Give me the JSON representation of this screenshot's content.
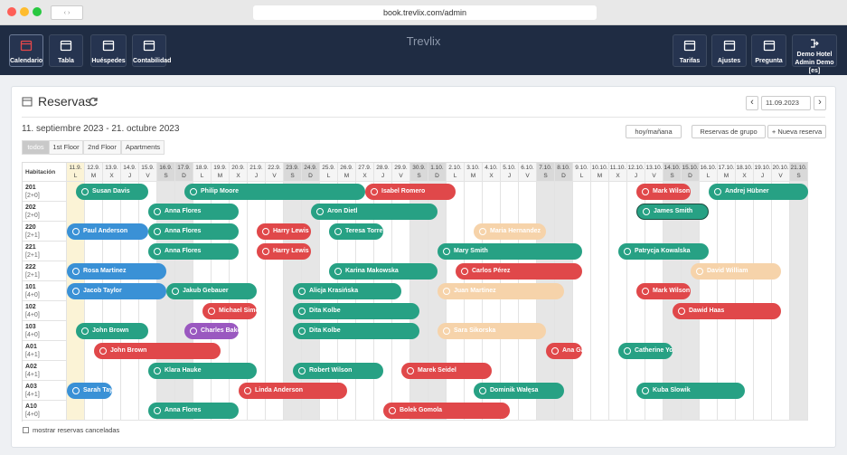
{
  "browser": {
    "url": "book.trevlix.com/admin"
  },
  "header": {
    "brand": "Trevlix",
    "nav_left": [
      "Calendario",
      "Tabla",
      "Huéspedes",
      "Contabilidad"
    ],
    "nav_right": [
      "Tarifas",
      "Ajustes",
      "Pregunta"
    ],
    "hotel": "Demo Hotel",
    "user": "Admin Demo [es]"
  },
  "page": {
    "title": "Reservas",
    "range": "11. septiembre 2023 - 21. octubre 2023",
    "date": "11.09.2023",
    "buttons": [
      "hoy/mañana",
      "Reservas de grupo",
      "+ Nueva reserva"
    ],
    "tabs": [
      "todos",
      "1st Floor",
      "2nd Floor",
      "Apartments"
    ],
    "room_header": "Habitación",
    "days": [
      "11.9.",
      "12.9.",
      "13.9.",
      "14.9.",
      "15.9.",
      "16.9.",
      "17.9.",
      "18.9.",
      "19.9.",
      "20.9.",
      "21.9.",
      "22.9.",
      "23.9.",
      "24.9.",
      "25.9.",
      "26.9.",
      "27.9.",
      "28.9.",
      "29.9.",
      "30.9.",
      "1.10.",
      "2.10.",
      "3.10.",
      "4.10.",
      "5.10.",
      "6.10.",
      "7.10.",
      "8.10.",
      "9.10.",
      "10.10.",
      "11.10.",
      "12.10.",
      "13.10.",
      "14.10.",
      "15.10.",
      "16.10.",
      "17.10.",
      "18.10.",
      "19.10.",
      "20.10.",
      "21.10."
    ],
    "weekdays": [
      "L",
      "M",
      "X",
      "J",
      "V",
      "S",
      "D",
      "L",
      "M",
      "X",
      "J",
      "V",
      "S",
      "D",
      "L",
      "M",
      "X",
      "J",
      "V",
      "S",
      "D",
      "L",
      "M",
      "X",
      "J",
      "V",
      "S",
      "D",
      "L",
      "M",
      "X",
      "J",
      "V",
      "S",
      "D",
      "L",
      "M",
      "X",
      "J",
      "V",
      "S"
    ],
    "rooms": [
      {
        "name": "201",
        "capacity": "[2+0]",
        "bookings": [
          {
            "guest": "Susan Davis",
            "color": "#27a184",
            "from": "11.9.",
            "to": "15.9."
          },
          {
            "guest": "Philip Moore",
            "color": "#27a184",
            "from": "17.9.",
            "to": "27.9."
          },
          {
            "guest": "Isabel Romero",
            "color": "#e0484a",
            "from": "27.9.",
            "to": "2.10."
          },
          {
            "guest": "Mark Wilson",
            "color": "#e0484a",
            "from": "12.10.",
            "to": "15.10."
          },
          {
            "guest": "Andrej Hübner",
            "color": "#27a184",
            "from": "16.10.",
            "to": null
          }
        ]
      },
      {
        "name": "202",
        "capacity": "[2+0]",
        "bookings": [
          {
            "guest": "Anna Flores",
            "color": "#27a184",
            "from": "15.9.",
            "to": "20.9."
          },
          {
            "guest": "Aron Dietl",
            "color": "#27a184",
            "from": "24.9.",
            "to": "1.10."
          },
          {
            "guest": "James Smith",
            "color": "#27a184",
            "from": "12.10.",
            "to": "16.10.",
            "selected": true
          }
        ]
      },
      {
        "name": "220",
        "capacity": "[2+1]",
        "bookings": [
          {
            "guest": "Paul Anderson",
            "color": "#3a91d6",
            "from": null,
            "to": "15.9."
          },
          {
            "guest": "Anna Flores",
            "color": "#27a184",
            "from": "15.9.",
            "to": "20.9."
          },
          {
            "guest": "Harry Lewis",
            "color": "#e0484a",
            "from": "21.9.",
            "to": "24.9."
          },
          {
            "guest": "Teresa Torres",
            "color": "#27a184",
            "from": "25.9.",
            "to": "28.9."
          },
          {
            "guest": "Maria Hernandez",
            "color": "#f6d3aa",
            "from": "3.10.",
            "to": "7.10."
          }
        ]
      },
      {
        "name": "221",
        "capacity": "[2+1]",
        "bookings": [
          {
            "guest": "Anna Flores",
            "color": "#27a184",
            "from": "15.9.",
            "to": "20.9."
          },
          {
            "guest": "Harry Lewis",
            "color": "#e0484a",
            "from": "21.9.",
            "to": "24.9."
          },
          {
            "guest": "Mary Smith",
            "color": "#27a184",
            "from": "1.10.",
            "to": "9.10."
          },
          {
            "guest": "Patrycja Kowalska",
            "color": "#27a184",
            "from": "11.10.",
            "to": "16.10."
          }
        ]
      },
      {
        "name": "222",
        "capacity": "[2+1]",
        "bookings": [
          {
            "guest": "Rosa Martinez",
            "color": "#3a91d6",
            "from": null,
            "to": "16.9."
          },
          {
            "guest": "Karina Makowska",
            "color": "#27a184",
            "from": "25.9.",
            "to": "1.10."
          },
          {
            "guest": "Carlos Pérez",
            "color": "#e0484a",
            "from": "2.10.",
            "to": "9.10."
          },
          {
            "guest": "David William",
            "color": "#f6d3aa",
            "from": "15.10.",
            "to": "20.10."
          }
        ]
      },
      {
        "name": "101",
        "capacity": "[4+0]",
        "bookings": [
          {
            "guest": "Jacob Taylor",
            "color": "#3a91d6",
            "from": null,
            "to": "16.9."
          },
          {
            "guest": "Jakub Gebauer",
            "color": "#27a184",
            "from": "16.9.",
            "to": "21.9."
          },
          {
            "guest": "Alicja Krasińska",
            "color": "#27a184",
            "from": "23.9.",
            "to": "29.9."
          },
          {
            "guest": "Juan Martinez",
            "color": "#f6d3aa",
            "from": "1.10.",
            "to": "8.10."
          },
          {
            "guest": "Mark Wilson",
            "color": "#e0484a",
            "from": "12.10.",
            "to": "15.10."
          }
        ]
      },
      {
        "name": "102",
        "capacity": "[4+0]",
        "bookings": [
          {
            "guest": "Michael Simons",
            "color": "#e0484a",
            "from": "18.9.",
            "to": "21.9."
          },
          {
            "guest": "Dita Kolbe",
            "color": "#27a184",
            "from": "23.9.",
            "to": "30.9."
          },
          {
            "guest": "Dawid Haas",
            "color": "#e0484a",
            "from": "14.10.",
            "to": "20.10."
          }
        ]
      },
      {
        "name": "103",
        "capacity": "[4+0]",
        "bookings": [
          {
            "guest": "John Brown",
            "color": "#27a184",
            "from": "11.9.",
            "to": "15.9."
          },
          {
            "guest": "Charles Baker",
            "color": "#9a58c0",
            "from": "17.9.",
            "to": "20.9."
          },
          {
            "guest": "Dita Kolbe",
            "color": "#27a184",
            "from": "23.9.",
            "to": "30.9."
          },
          {
            "guest": "Sara Sikorska",
            "color": "#f6d3aa",
            "from": "1.10.",
            "to": "7.10."
          }
        ]
      },
      {
        "name": "A01",
        "capacity": "[4+1]",
        "bookings": [
          {
            "guest": "John Brown",
            "color": "#e0484a",
            "from": "12.9.",
            "to": "19.9."
          },
          {
            "guest": "Ana Garci",
            "color": "#e0484a",
            "from": "7.10.",
            "to": "9.10."
          },
          {
            "guest": "Catherine Young",
            "color": "#27a184",
            "from": "11.10.",
            "to": "14.10."
          }
        ]
      },
      {
        "name": "A02",
        "capacity": "[4+1]",
        "bookings": [
          {
            "guest": "Klara Hauke",
            "color": "#27a184",
            "from": "15.9.",
            "to": "21.9."
          },
          {
            "guest": "Robert Wilson",
            "color": "#27a184",
            "from": "23.9.",
            "to": "28.9."
          },
          {
            "guest": "Marek Seidel",
            "color": "#e0484a",
            "from": "29.9.",
            "to": "4.10."
          }
        ]
      },
      {
        "name": "A03",
        "capacity": "[4+1]",
        "bookings": [
          {
            "guest": "Sarah Taylor",
            "color": "#3a91d6",
            "from": null,
            "to": "13.9."
          },
          {
            "guest": "Linda Anderson",
            "color": "#e0484a",
            "from": "20.9.",
            "to": "26.9."
          },
          {
            "guest": "Dominik Wałęsa",
            "color": "#27a184",
            "from": "3.10.",
            "to": "8.10."
          },
          {
            "guest": "Kuba Slowik",
            "color": "#27a184",
            "from": "12.10.",
            "to": "18.10."
          }
        ]
      },
      {
        "name": "A10",
        "capacity": "[4+0]",
        "bookings": [
          {
            "guest": "Anna Flores",
            "color": "#27a184",
            "from": "15.9.",
            "to": "20.9."
          },
          {
            "guest": "Bolek Gomola",
            "color": "#e0484a",
            "from": "28.9.",
            "to": "5.10."
          }
        ]
      }
    ],
    "show_cancelled": "mostrar reservas canceladas"
  }
}
